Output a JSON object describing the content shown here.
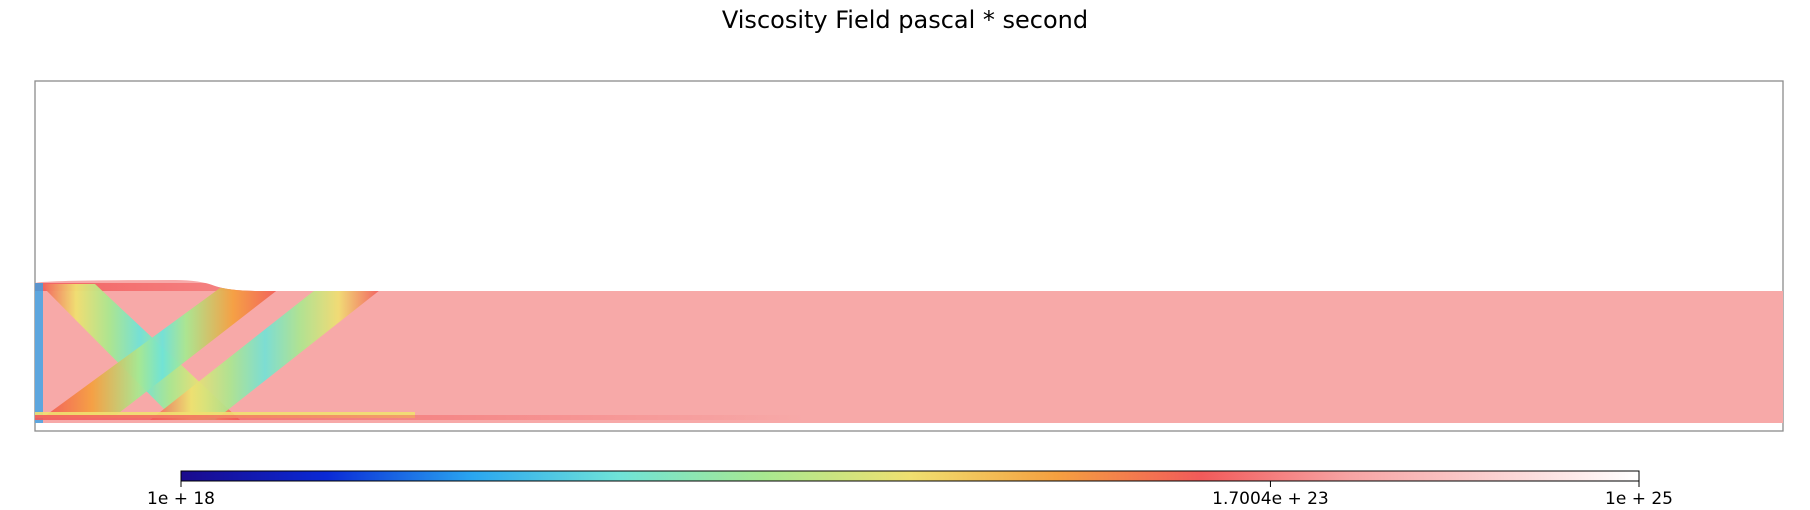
{
  "chart_data": {
    "type": "heatmap",
    "title": "Viscosity Field pascal * second",
    "quantity": "viscosity",
    "units": "pascal * second",
    "colorbar": {
      "scale": "log",
      "min": 1e+18,
      "max": 1e+25,
      "orientation": "horizontal",
      "placement": "bottom",
      "colormap": [
        "#1a0a8c",
        "#0a2ad6",
        "#2aa6f0",
        "#6fe3d8",
        "#a8e890",
        "#f0e070",
        "#f5a040",
        "#f25a5a",
        "#f7a3a3",
        "#fbd0d0",
        "#ffffff"
      ],
      "ticks": [
        {
          "value": 1e+18,
          "label": "1e + 18"
        },
        {
          "value": 1.7004e+23,
          "label": "1.7004e + 23"
        },
        {
          "value": 1e+25,
          "label": "1e + 25"
        }
      ]
    },
    "field_description": "Viscous slab/lithosphere layer at ~1e24 Pa*s with low-viscosity diagonal shear bands (~1e20-1e22 Pa*s) near the left end and a thin low-viscosity strip along the base; air/space above is blank",
    "frame": true,
    "grid": false,
    "axes_visible": false
  }
}
